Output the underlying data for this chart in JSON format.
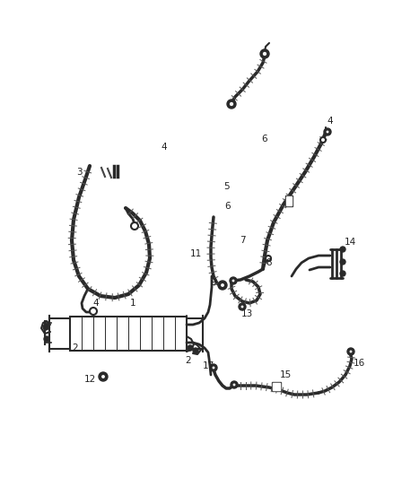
{
  "bg_color": "#ffffff",
  "line_color": "#2a2a2a",
  "label_color": "#222222",
  "fig_width": 4.38,
  "fig_height": 5.33,
  "dpi": 100
}
